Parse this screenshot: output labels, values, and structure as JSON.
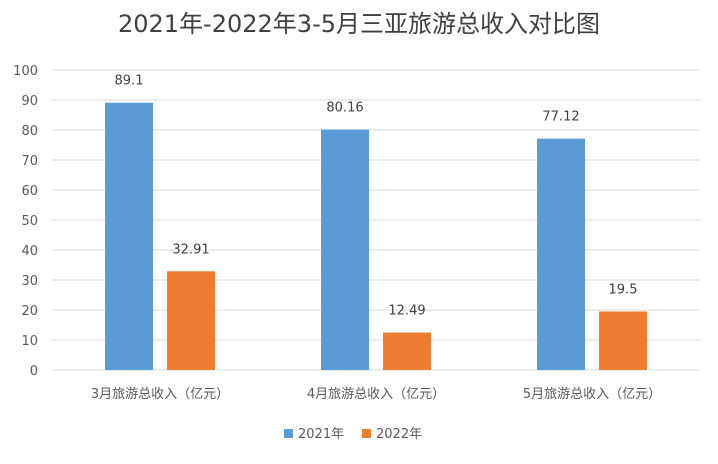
{
  "chart_data": {
    "type": "bar",
    "title": "2021年-2022年3-5月三亚旅游总收入对比图",
    "categories": [
      "3月旅游总收入（亿元）",
      "4月旅游总收入（亿元）",
      "5月旅游总收入（亿元）"
    ],
    "series": [
      {
        "name": "2021年",
        "values": [
          89.1,
          80.16,
          77.12
        ],
        "labels": [
          "89.1",
          "80.16",
          "77.12"
        ],
        "color": "#5b9bd5"
      },
      {
        "name": "2022年",
        "values": [
          32.91,
          12.49,
          19.5
        ],
        "labels": [
          "32.91",
          "12.49",
          "19.5"
        ],
        "color": "#ed7d31"
      }
    ],
    "ylim": [
      0,
      100
    ],
    "yticks": [
      "0",
      "10",
      "20",
      "30",
      "40",
      "50",
      "60",
      "70",
      "80",
      "90",
      "100"
    ],
    "grid": true,
    "legend_position": "bottom",
    "gridline_color": "#d9d9d9"
  }
}
